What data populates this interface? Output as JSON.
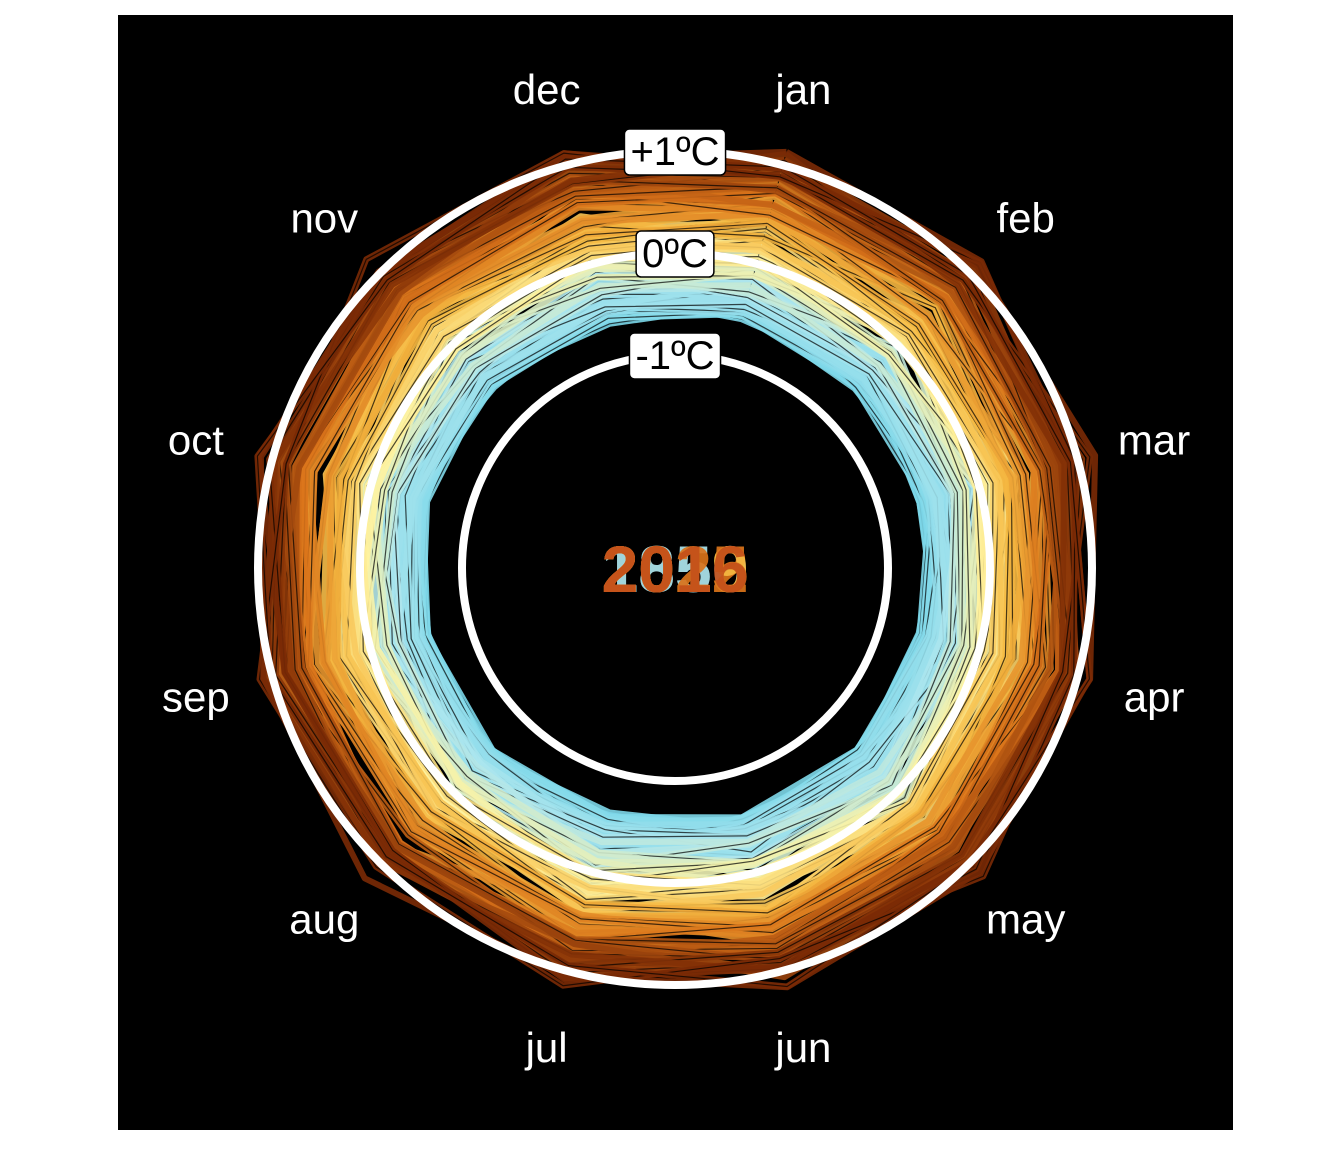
{
  "chart_data": {
    "type": "line",
    "subtype": "polar-spiral",
    "title": "",
    "months": [
      "jan",
      "feb",
      "mar",
      "apr",
      "may",
      "jun",
      "jul",
      "aug",
      "sep",
      "oct",
      "nov",
      "dec"
    ],
    "reference_rings": [
      {
        "value": -1,
        "label": "-1ºC"
      },
      {
        "value": 0,
        "label": "0ºC"
      },
      {
        "value": 1,
        "label": "+1ºC"
      }
    ],
    "radial_range": [
      -2,
      1.4
    ],
    "year_range": [
      1850,
      2022
    ],
    "year_labels": [
      "1850",
      "2022",
      "2019",
      "2015",
      "2016"
    ],
    "palette": {
      "background": "#000000",
      "rings": "#ffffff",
      "cold": "#6fd3e8",
      "cool": "#aee6ee",
      "neutral": "#fff3a0",
      "warm": "#f5b942",
      "hot": "#d9731a",
      "hottest": "#7a2a05"
    },
    "series_description": "Monthly global temperature anomaly (ºC) per year, one closed line per year, colour graded from cold (light blue, early years) to hot (dark orange, recent years)."
  }
}
